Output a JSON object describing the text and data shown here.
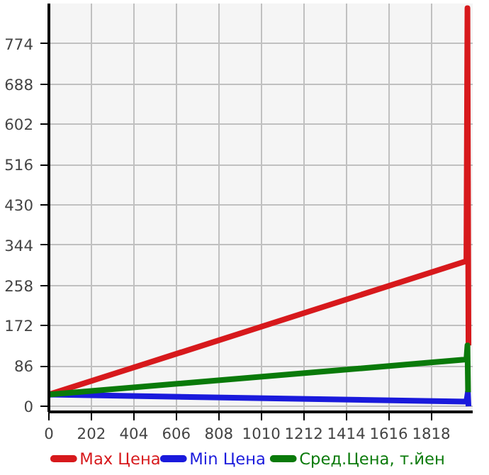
{
  "chart_data": {
    "type": "line",
    "series": [
      {
        "name": "Max Цена",
        "color": "#d7191c",
        "x": [
          0,
          1985,
          1990,
          1995
        ],
        "values": [
          25,
          310,
          850,
          130
        ]
      },
      {
        "name": "Min Цена",
        "color": "#1a1adc",
        "x": [
          0,
          1985,
          1992,
          1995
        ],
        "values": [
          25,
          10,
          30,
          0
        ]
      },
      {
        "name": "Сред.Цена, т.йен",
        "color": "#0a7a0a",
        "x": [
          0,
          1985,
          1990,
          1993
        ],
        "values": [
          25,
          100,
          130,
          30
        ]
      }
    ],
    "xlim": [
      0,
      2015
    ],
    "ylim": [
      -12,
      860
    ],
    "xticks": [
      0,
      202,
      404,
      606,
      808,
      1010,
      1212,
      1414,
      1616,
      1818
    ],
    "yticks": [
      0,
      86,
      172,
      258,
      344,
      430,
      516,
      602,
      688,
      774
    ],
    "grid": true,
    "legend": "bottom",
    "marker": "none",
    "line_style": "solid"
  }
}
